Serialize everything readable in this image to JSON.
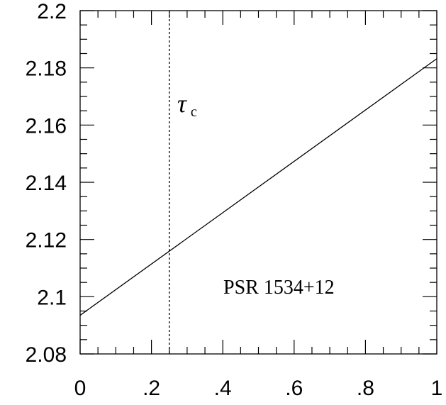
{
  "chart_data": {
    "type": "line",
    "title": "",
    "xlabel": "",
    "ylabel": "",
    "xlim": [
      0,
      1
    ],
    "ylim": [
      2.08,
      2.2
    ],
    "x_ticks": [
      {
        "value": 0,
        "label": "0"
      },
      {
        "value": 0.2,
        "label": ".2"
      },
      {
        "value": 0.4,
        "label": ".4"
      },
      {
        "value": 0.6,
        "label": ".6"
      },
      {
        "value": 0.8,
        "label": ".8"
      },
      {
        "value": 1.0,
        "label": "1"
      }
    ],
    "y_ticks": [
      {
        "value": 2.08,
        "label": "2.08"
      },
      {
        "value": 2.1,
        "label": "2.1"
      },
      {
        "value": 2.12,
        "label": "2.12"
      },
      {
        "value": 2.14,
        "label": "2.14"
      },
      {
        "value": 2.16,
        "label": "2.16"
      },
      {
        "value": 2.18,
        "label": "2.18"
      },
      {
        "value": 2.2,
        "label": "2.2"
      }
    ],
    "x_minor_step": 0.05,
    "y_minor_step": 0.005,
    "series": [
      {
        "x": [
          0,
          1
        ],
        "y": [
          2.0935,
          2.1832
        ],
        "style": "solid",
        "color": "#000000"
      }
    ],
    "reference_lines": [
      {
        "orientation": "vertical",
        "x": 0.25,
        "style": "dotted"
      }
    ],
    "annotations": {
      "tau_symbol": "τ",
      "tau_subscript": "c",
      "pulsar": "PSR 1534+12"
    },
    "grid": false,
    "legend": "none"
  }
}
